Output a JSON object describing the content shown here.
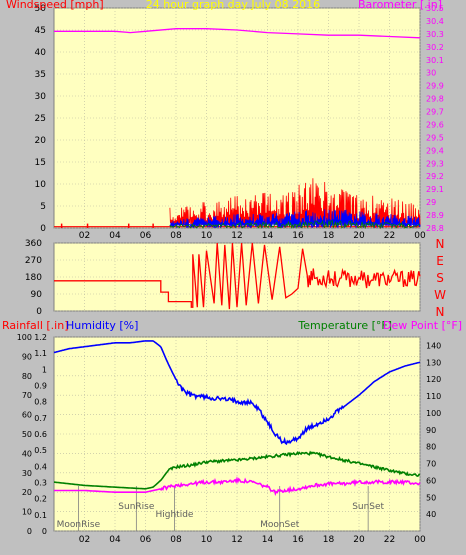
{
  "colors": {
    "background": "#c0c0c0",
    "plot_bg": "#ffffc0",
    "grid": "#b8b8a0",
    "wind_speed": "#ff0000",
    "wind_avg": "#0000ff",
    "wind_min": "#008000",
    "barometer": "#ff00ff",
    "direction": "#ff0000",
    "humidity": "#0000ff",
    "temperature": "#008000",
    "dewpoint": "#ff00ff",
    "rain": "#ff0000",
    "axis_text": "#000000",
    "title_text": "#ffff00",
    "compass_text": "#ff0000",
    "baro_text": "#ff00ff"
  },
  "x_ticks": [
    "02",
    "04",
    "06",
    "08",
    "10",
    "12",
    "14",
    "16",
    "18",
    "20",
    "22",
    "00"
  ],
  "chart_data": [
    {
      "id": "wind_baro",
      "type": "line",
      "title": "24 hour graph day   July 08 2016",
      "ylabel_left": "Windspeed [mph]",
      "ylabel_right": "Barometer [.in]",
      "ylim_left": [
        0,
        50
      ],
      "ylim_right": [
        28.8,
        30.5
      ],
      "yticks_left": [
        0,
        5,
        10,
        15,
        20,
        25,
        30,
        35,
        40,
        45,
        50
      ],
      "yticks_right": [
        "28.8",
        "28.9",
        "29",
        "29.1",
        "29.2",
        "29.3",
        "29.4",
        "29.5",
        "29.6",
        "29.7",
        "29.8",
        "29.9",
        "30",
        "30.1",
        "30.2",
        "30.3",
        "30.4",
        "30.5"
      ],
      "xlim": [
        0,
        24
      ],
      "barometer": {
        "name": "Barometer",
        "x": [
          0,
          2,
          4,
          5,
          6,
          8,
          9,
          10,
          12,
          14,
          16,
          18,
          20,
          22,
          24
        ],
        "y": [
          30.32,
          30.32,
          30.32,
          30.31,
          30.32,
          30.34,
          30.34,
          30.34,
          30.33,
          30.31,
          30.3,
          30.29,
          30.29,
          30.28,
          30.27
        ]
      },
      "wind_gust_spikes": [
        {
          "x": 0.5,
          "y": 1
        },
        {
          "x": 2.2,
          "y": 1
        },
        {
          "x": 4.9,
          "y": 1
        },
        {
          "x": 6.5,
          "y": 1
        }
      ],
      "wind_active_range": [
        7.6,
        24
      ],
      "wind_gust_profile": {
        "x": [
          7.6,
          9,
          10,
          11,
          12,
          13,
          14,
          15,
          16,
          16.5,
          17,
          17.5,
          18,
          19,
          20,
          21,
          22,
          23,
          24
        ],
        "y": [
          4,
          4.5,
          5,
          5.5,
          6,
          6.5,
          6.5,
          7,
          8,
          9,
          10,
          9,
          8.5,
          7,
          6,
          6,
          5.5,
          5,
          4.5
        ]
      },
      "wind_avg_profile": {
        "x": [
          7.6,
          10,
          12,
          14,
          16,
          18,
          20,
          22,
          24
        ],
        "y": [
          1.5,
          2,
          2.5,
          2.5,
          3,
          3.5,
          3,
          2.5,
          2
        ]
      }
    },
    {
      "id": "direction",
      "type": "line",
      "ylim": [
        0,
        360
      ],
      "yticks": [
        0,
        90,
        180,
        270,
        360
      ],
      "compass": [
        "N",
        "W",
        "S",
        "E",
        "N"
      ],
      "xlim": [
        0,
        24
      ],
      "segments": {
        "x": [
          0,
          7,
          7,
          7.5,
          7.5,
          9,
          9,
          9.1,
          9.1,
          9.4,
          9.5,
          9.8,
          10,
          10.5,
          10.7,
          11,
          11.2,
          11.5,
          11.7,
          12,
          12.3,
          12.6,
          13,
          13.4,
          13.8,
          14.3,
          14.8,
          15.2,
          15.6,
          16,
          16.3,
          16.6,
          17,
          17.5,
          18,
          18.5,
          19,
          19.5,
          20,
          20.5,
          21,
          21.5,
          22,
          22.5,
          23,
          23.5,
          24
        ],
        "y": [
          160,
          160,
          100,
          100,
          50,
          50,
          20,
          20,
          300,
          20,
          300,
          20,
          320,
          40,
          360,
          30,
          350,
          10,
          360,
          20,
          360,
          30,
          360,
          40,
          350,
          60,
          340,
          70,
          90,
          120,
          330,
          200,
          230,
          170,
          210,
          150,
          190,
          170,
          200,
          150,
          180,
          170,
          160,
          180,
          170,
          160,
          170
        ]
      }
    },
    {
      "id": "hum_temp",
      "type": "line",
      "ylabel_rain": "Rainfall [.in]",
      "ylabel_humidity": "Humidity [%]",
      "ylabel_temp": "Temperature [°F]",
      "ylabel_dew": "Dew Point [°F]",
      "ylim_rain": [
        0,
        1.2
      ],
      "ylim_humidity": [
        0,
        100
      ],
      "ylim_temp": [
        30,
        145
      ],
      "yticks_rain": [
        "0",
        "0.1",
        "0.2",
        "0.3",
        "0.4",
        "0.5",
        "0.6",
        "0.7",
        "0.8",
        "0.9",
        "1",
        "1.1",
        "1.2"
      ],
      "yticks_humidity": [
        0,
        10,
        20,
        30,
        40,
        50,
        60,
        70,
        80,
        90,
        100
      ],
      "yticks_temp": [
        40,
        50,
        60,
        70,
        80,
        90,
        100,
        110,
        120,
        130,
        140
      ],
      "xlim": [
        0,
        24
      ],
      "humidity": {
        "name": "Humidity",
        "x": [
          0,
          1,
          2,
          3,
          4,
          5,
          6,
          6.5,
          7,
          7.5,
          8,
          8.5,
          9,
          10,
          11,
          12,
          13,
          13.5,
          14,
          14.5,
          15,
          15.5,
          16,
          16.5,
          17,
          18,
          19,
          20,
          21,
          22,
          23,
          24
        ],
        "y": [
          92,
          94,
          95,
          96,
          97,
          97,
          98,
          98,
          95,
          86,
          78,
          72,
          70,
          69,
          68,
          67,
          66,
          62,
          56,
          50,
          46,
          46,
          48,
          52,
          54,
          58,
          64,
          70,
          77,
          82,
          85,
          87
        ]
      },
      "temperature": {
        "name": "Temperature",
        "x": [
          0,
          2,
          4,
          6,
          6.5,
          7,
          7.5,
          8,
          9,
          10,
          12,
          13,
          14,
          15,
          16,
          17,
          18,
          19,
          20,
          21,
          22,
          23,
          24
        ],
        "y": [
          59,
          57,
          56,
          55,
          56,
          60,
          66,
          68,
          69,
          71,
          72,
          73,
          74,
          75,
          76,
          76,
          74,
          72,
          70,
          68,
          66,
          64,
          63
        ]
      },
      "dewpoint": {
        "name": "Dew Point",
        "x": [
          0,
          2,
          4,
          6,
          6.5,
          7,
          7.5,
          8,
          9,
          10,
          11,
          12,
          13,
          14,
          14.5,
          15,
          16,
          17,
          18,
          19,
          20,
          21,
          22,
          23,
          24
        ],
        "y": [
          54,
          54,
          53,
          53,
          54,
          55,
          56,
          57,
          58,
          59,
          59,
          60,
          59,
          56,
          53,
          54,
          55,
          57,
          58,
          58,
          59,
          59,
          59,
          59,
          58
        ]
      },
      "event_markers": [
        {
          "label": "MoonRise",
          "x": 1.6
        },
        {
          "label": "SunRise",
          "x": 5.4
        },
        {
          "label": "Hightide",
          "x": 7.9
        },
        {
          "label": "MoonSet",
          "x": 14.8
        },
        {
          "label": "SunSet",
          "x": 20.6
        }
      ]
    }
  ]
}
